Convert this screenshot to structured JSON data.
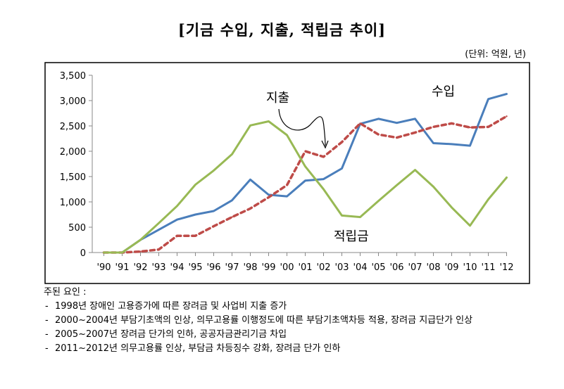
{
  "title": "[기금 수입, 지출, 적립금 추이]",
  "unit": "(단위: 억원, 년)",
  "chart_data": {
    "type": "line",
    "categories": [
      "'90",
      "'91",
      "'92",
      "'93",
      "'94",
      "'95",
      "'96",
      "'97",
      "'98",
      "'99",
      "'00",
      "'01",
      "'02",
      "'03",
      "'04",
      "'05",
      "'06",
      "'07",
      "'08",
      "'09",
      "'10",
      "'11",
      "'12"
    ],
    "ylim": [
      0,
      3500
    ],
    "yticks": [
      0,
      500,
      1000,
      1500,
      2000,
      2500,
      3000,
      3500
    ],
    "ytick_labels": [
      "0",
      "500",
      "1,000",
      "1,500",
      "2,000",
      "2,500",
      "3,000",
      "3,500"
    ],
    "grid": false,
    "series": [
      {
        "name": "수입",
        "color": "#4a7ebb",
        "style": "solid",
        "values": [
          0,
          0,
          250,
          450,
          650,
          750,
          820,
          1030,
          1440,
          1140,
          1110,
          1420,
          1450,
          1660,
          2540,
          2640,
          2560,
          2640,
          2160,
          2140,
          2110,
          3030,
          3130
        ]
      },
      {
        "name": "지출",
        "color": "#be4b48",
        "style": "dashed",
        "values": [
          0,
          0,
          20,
          60,
          330,
          330,
          520,
          700,
          870,
          1090,
          1330,
          2000,
          1890,
          2180,
          2550,
          2330,
          2270,
          2370,
          2480,
          2550,
          2470,
          2480,
          2690
        ]
      },
      {
        "name": "적립금",
        "color": "#98b954",
        "style": "solid",
        "values": [
          0,
          0,
          250,
          580,
          920,
          1340,
          1620,
          1940,
          2510,
          2590,
          2320,
          1700,
          1250,
          730,
          700,
          1020,
          1330,
          1630,
          1300,
          890,
          530,
          1050,
          1480
        ]
      }
    ],
    "annotations": [
      "수입",
      "지출",
      "적립금"
    ]
  },
  "notes": {
    "heading": "주된 요인 :",
    "items": [
      "1998년 장애인 고용증가에 따른 장려금 및 사업비 지출 증가",
      "2000~2004년 부담기초액의 인상, 의무고용률 이행정도에 따른 부담기초액차등 적용, 장려금 지급단가 인상",
      "2005~2007년 장려금 단가의 인하, 공공자금관리기금 차입",
      "2011~2012년 의무고용률 인상, 부담금 차등징수 강화, 장려금 단가 인하"
    ]
  }
}
